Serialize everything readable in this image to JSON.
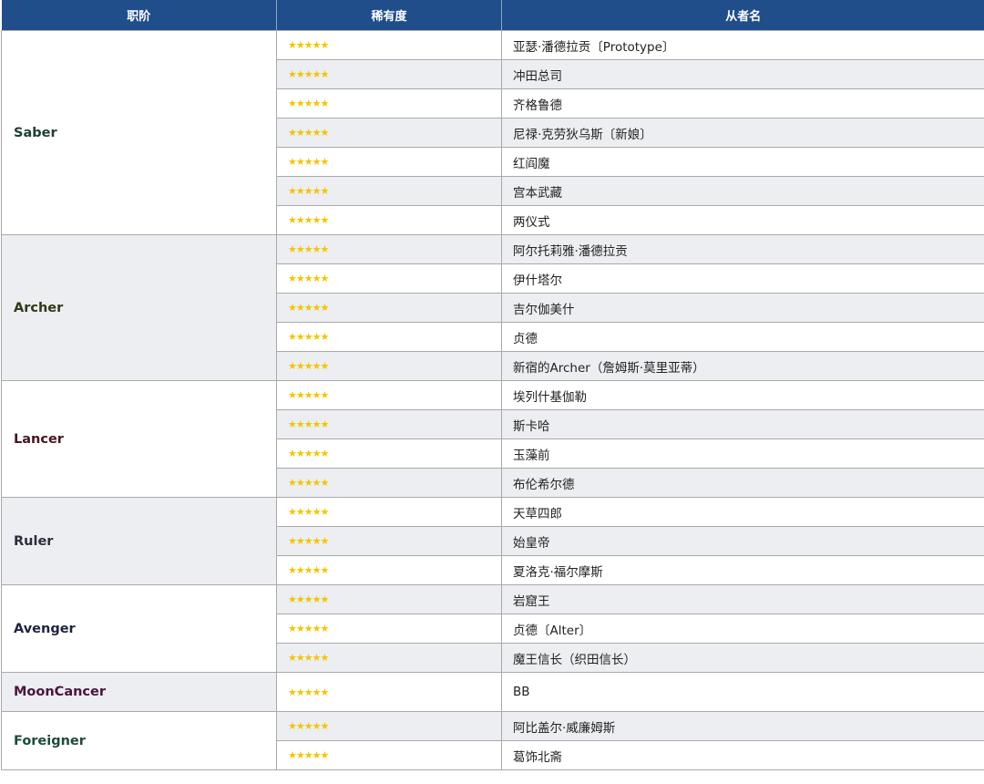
{
  "header": {
    "class": "职阶",
    "rarity": "稀有度",
    "servant": "从者名"
  },
  "star_color": "#f2c500",
  "header_color": "#1f4e8a",
  "groups": [
    {
      "class": "Saber",
      "color": "#1d3f33",
      "rows": [
        {
          "rarity": "★★★★★",
          "name": "亚瑟·潘德拉贡〔Prototype〕"
        },
        {
          "rarity": "★★★★★",
          "name": "冲田总司"
        },
        {
          "rarity": "★★★★★",
          "name": "齐格鲁德"
        },
        {
          "rarity": "★★★★★",
          "name": "尼禄·克劳狄乌斯〔新娘〕"
        },
        {
          "rarity": "★★★★★",
          "name": "红阎魔"
        },
        {
          "rarity": "★★★★★",
          "name": "宫本武藏"
        },
        {
          "rarity": "★★★★★",
          "name": "两仪式"
        }
      ]
    },
    {
      "class": "Archer",
      "color": "#2e3a16",
      "rows": [
        {
          "rarity": "★★★★★",
          "name": "阿尔托莉雅·潘德拉贡"
        },
        {
          "rarity": "★★★★★",
          "name": "伊什塔尔"
        },
        {
          "rarity": "★★★★★",
          "name": "吉尔伽美什"
        },
        {
          "rarity": "★★★★★",
          "name": "贞德"
        },
        {
          "rarity": "★★★★★",
          "name": "新宿的Archer（詹姆斯·莫里亚蒂）"
        }
      ]
    },
    {
      "class": "Lancer",
      "color": "#4a1420",
      "rows": [
        {
          "rarity": "★★★★★",
          "name": "埃列什基伽勒"
        },
        {
          "rarity": "★★★★★",
          "name": "斯卡哈"
        },
        {
          "rarity": "★★★★★",
          "name": "玉藻前"
        },
        {
          "rarity": "★★★★★",
          "name": "布伦希尔德"
        }
      ]
    },
    {
      "class": "Ruler",
      "color": "#2a2e3a",
      "rows": [
        {
          "rarity": "★★★★★",
          "name": "天草四郎"
        },
        {
          "rarity": "★★★★★",
          "name": "始皇帝"
        },
        {
          "rarity": "★★★★★",
          "name": "夏洛克·福尔摩斯"
        }
      ]
    },
    {
      "class": "Avenger",
      "color": "#1e2440",
      "rows": [
        {
          "rarity": "★★★★★",
          "name": "岩窟王"
        },
        {
          "rarity": "★★★★★",
          "name": "贞德〔Alter〕"
        },
        {
          "rarity": "★★★★★",
          "name": "魔王信长（织田信长）"
        }
      ]
    },
    {
      "class": "MoonCancer",
      "color": "#4a1540",
      "rows": [
        {
          "rarity": "★★★★★",
          "name": "BB"
        }
      ]
    },
    {
      "class": "Foreigner",
      "color": "#1d4a3e",
      "rows": [
        {
          "rarity": "★★★★★",
          "name": "阿比盖尔·威廉姆斯"
        },
        {
          "rarity": "★★★★★",
          "name": "葛饰北斋"
        }
      ]
    }
  ]
}
